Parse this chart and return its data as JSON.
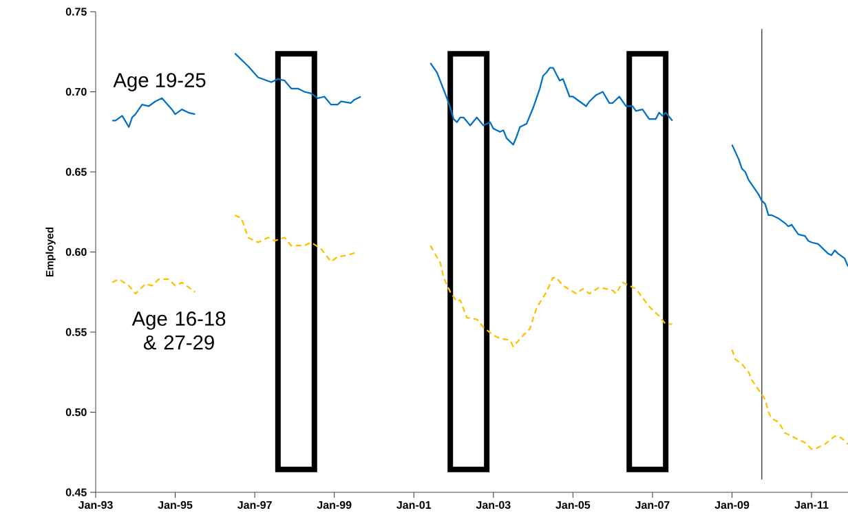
{
  "chart_data": {
    "type": "line",
    "ylabel": "Employed",
    "xlim": [
      "1993-01",
      "2011-12"
    ],
    "ylim": [
      0.45,
      0.75
    ],
    "xticks": [
      {
        "value": "1993-01",
        "label": "Jan-93"
      },
      {
        "value": "1995-01",
        "label": "Jan-95"
      },
      {
        "value": "1997-01",
        "label": "Jan-97"
      },
      {
        "value": "1999-01",
        "label": "Jan-99"
      },
      {
        "value": "2001-01",
        "label": "Jan-01"
      },
      {
        "value": "2003-01",
        "label": "Jan-03"
      },
      {
        "value": "2005-01",
        "label": "Jan-05"
      },
      {
        "value": "2007-01",
        "label": "Jan-07"
      },
      {
        "value": "2009-01",
        "label": "Jan-09"
      },
      {
        "value": "2011-01",
        "label": "Jan-11"
      }
    ],
    "yticks": [
      {
        "value": 0.45,
        "label": "0.45"
      },
      {
        "value": 0.5,
        "label": "0.50"
      },
      {
        "value": 0.55,
        "label": "0.55"
      },
      {
        "value": 0.6,
        "label": "0.60"
      },
      {
        "value": 0.65,
        "label": "0.65"
      },
      {
        "value": 0.7,
        "label": "0.70"
      },
      {
        "value": 0.75,
        "label": "0.75"
      }
    ],
    "series": [
      {
        "name": "Age 19-25",
        "color": "#0070c0",
        "line_style": "solid",
        "x": [
          "1993-06",
          "1993-07",
          "1993-09",
          "1993-11",
          "1993-12",
          "1994-01",
          "1994-03",
          "1994-05",
          "1994-07",
          "1994-09",
          "1994-12",
          "1995-01",
          "1995-03",
          "1995-05",
          "1995-07",
          "1996-01",
          "1996-07",
          "1996-11",
          "1997-02",
          "1997-06",
          "1997-08",
          "1997-10",
          "1997-12",
          "1998-02",
          "1998-04",
          "1998-06",
          "1998-08",
          "1998-10",
          "1998-12",
          "1999-02",
          "1999-03",
          "1999-06",
          "1999-07",
          "1999-09",
          "2000-06",
          "2001-06",
          "2001-08",
          "2001-11",
          "2001-12",
          "2002-01",
          "2002-02",
          "2002-03",
          "2002-04",
          "2002-06",
          "2002-08",
          "2002-10",
          "2002-12",
          "2003-01",
          "2003-03",
          "2003-04",
          "2003-05",
          "2003-07",
          "2003-08",
          "2003-09",
          "2003-11",
          "2004-01",
          "2004-03",
          "2004-04",
          "2004-05",
          "2004-06",
          "2004-07",
          "2004-09",
          "2004-10",
          "2004-12",
          "2005-01",
          "2005-03",
          "2005-05",
          "2005-06",
          "2005-08",
          "2005-10",
          "2005-12",
          "2006-01",
          "2006-03",
          "2006-05",
          "2006-07",
          "2006-08",
          "2006-10",
          "2006-12",
          "2007-02",
          "2007-03",
          "2007-04",
          "2007-05",
          "2007-07",
          "2008-03",
          "2009-01",
          "2009-03",
          "2009-04",
          "2009-05",
          "2009-06",
          "2009-08",
          "2009-09",
          "2009-10",
          "2009-11",
          "2009-12",
          "2010-01",
          "2010-03",
          "2010-05",
          "2010-06",
          "2010-07",
          "2010-09",
          "2010-11",
          "2010-12",
          "2011-01",
          "2011-03",
          "2011-06",
          "2011-07",
          "2011-08",
          "2011-09",
          "2011-11",
          "2011-12"
        ],
        "values": [
          0.682,
          0.682,
          0.685,
          0.678,
          0.684,
          0.686,
          0.692,
          0.691,
          0.694,
          0.696,
          0.689,
          0.686,
          0.689,
          0.687,
          0.686,
          null,
          0.724,
          0.716,
          0.709,
          0.706,
          0.708,
          0.707,
          0.702,
          0.702,
          0.7,
          0.699,
          0.696,
          0.697,
          0.692,
          0.692,
          0.694,
          0.693,
          0.695,
          0.697,
          null,
          0.718,
          0.712,
          0.696,
          0.69,
          0.683,
          0.681,
          0.684,
          0.684,
          0.679,
          0.684,
          0.679,
          0.681,
          0.677,
          0.675,
          0.676,
          0.671,
          0.667,
          0.672,
          0.678,
          0.68,
          0.69,
          0.702,
          0.71,
          0.712,
          0.715,
          0.715,
          0.707,
          0.708,
          0.697,
          0.697,
          0.694,
          0.691,
          0.694,
          0.698,
          0.7,
          0.693,
          0.693,
          0.697,
          0.691,
          0.691,
          0.688,
          0.689,
          0.683,
          0.683,
          0.687,
          0.685,
          0.687,
          0.682,
          null,
          0.667,
          0.658,
          0.652,
          0.65,
          0.645,
          0.639,
          0.636,
          0.632,
          0.63,
          0.623,
          0.623,
          0.621,
          0.618,
          0.616,
          0.617,
          0.611,
          0.61,
          0.607,
          0.606,
          0.605,
          0.599,
          0.598,
          0.601,
          0.599,
          0.596,
          0.591
        ]
      },
      {
        "name": "Age 16-18 & 27-29",
        "color": "#ffc000",
        "line_style": "dashed",
        "x": [
          "1993-06",
          "1993-08",
          "1993-11",
          "1994-01",
          "1994-04",
          "1994-06",
          "1994-08",
          "1994-11",
          "1995-01",
          "1995-03",
          "1995-07",
          "1996-01",
          "1996-07",
          "1996-09",
          "1996-11",
          "1997-02",
          "1997-05",
          "1997-07",
          "1997-10",
          "1997-12",
          "1998-04",
          "1998-06",
          "1998-09",
          "1998-12",
          "1999-02",
          "1999-05",
          "1999-08",
          "2000-06",
          "2001-06",
          "2001-09",
          "2001-10",
          "2001-12",
          "2002-02",
          "2002-03",
          "2002-05",
          "2002-08",
          "2002-10",
          "2003-01",
          "2003-03",
          "2003-06",
          "2003-07",
          "2003-10",
          "2003-12",
          "2004-02",
          "2004-05",
          "2004-07",
          "2004-08",
          "2004-10",
          "2005-02",
          "2005-04",
          "2005-06",
          "2005-09",
          "2006-01",
          "2006-02",
          "2006-04",
          "2006-06",
          "2006-08",
          "2006-12",
          "2007-03",
          "2007-05",
          "2007-07",
          "2008-03",
          "2009-01",
          "2009-02",
          "2009-04",
          "2009-06",
          "2009-07",
          "2009-09",
          "2009-11",
          "2009-12",
          "2010-01",
          "2010-03",
          "2010-05",
          "2010-08",
          "2010-11",
          "2011-01",
          "2011-02",
          "2011-05",
          "2011-08",
          "2011-10",
          "2011-12"
        ],
        "values": [
          0.581,
          0.583,
          0.579,
          0.574,
          0.58,
          0.579,
          0.583,
          0.583,
          0.579,
          0.581,
          0.575,
          null,
          0.623,
          0.621,
          0.609,
          0.606,
          0.609,
          0.607,
          0.609,
          0.604,
          0.604,
          0.606,
          0.602,
          0.594,
          0.597,
          0.598,
          0.6,
          null,
          0.604,
          0.593,
          0.584,
          0.575,
          0.569,
          0.57,
          0.559,
          0.558,
          0.553,
          0.548,
          0.546,
          0.545,
          0.541,
          0.548,
          0.552,
          0.565,
          0.575,
          0.584,
          0.584,
          0.579,
          0.574,
          0.577,
          0.574,
          0.578,
          0.576,
          0.574,
          0.581,
          0.579,
          0.577,
          0.566,
          0.56,
          0.555,
          0.555,
          null,
          0.539,
          0.533,
          0.53,
          0.525,
          0.52,
          0.514,
          0.508,
          0.5,
          0.496,
          0.494,
          0.487,
          0.484,
          0.481,
          0.477,
          0.477,
          0.48,
          0.485,
          0.484,
          0.48
        ]
      }
    ],
    "bands": [
      {
        "axis": "x",
        "from": "1997-08",
        "to": "1998-07",
        "color": "#000000"
      },
      {
        "axis": "x",
        "from": "2001-12",
        "to": "2002-11",
        "color": "#000000"
      },
      {
        "axis": "x",
        "from": "2006-06",
        "to": "2007-05",
        "color": "#000000"
      }
    ],
    "ref_lines": [
      {
        "axis": "x",
        "value": "2009-10",
        "color": "#000000"
      }
    ]
  }
}
